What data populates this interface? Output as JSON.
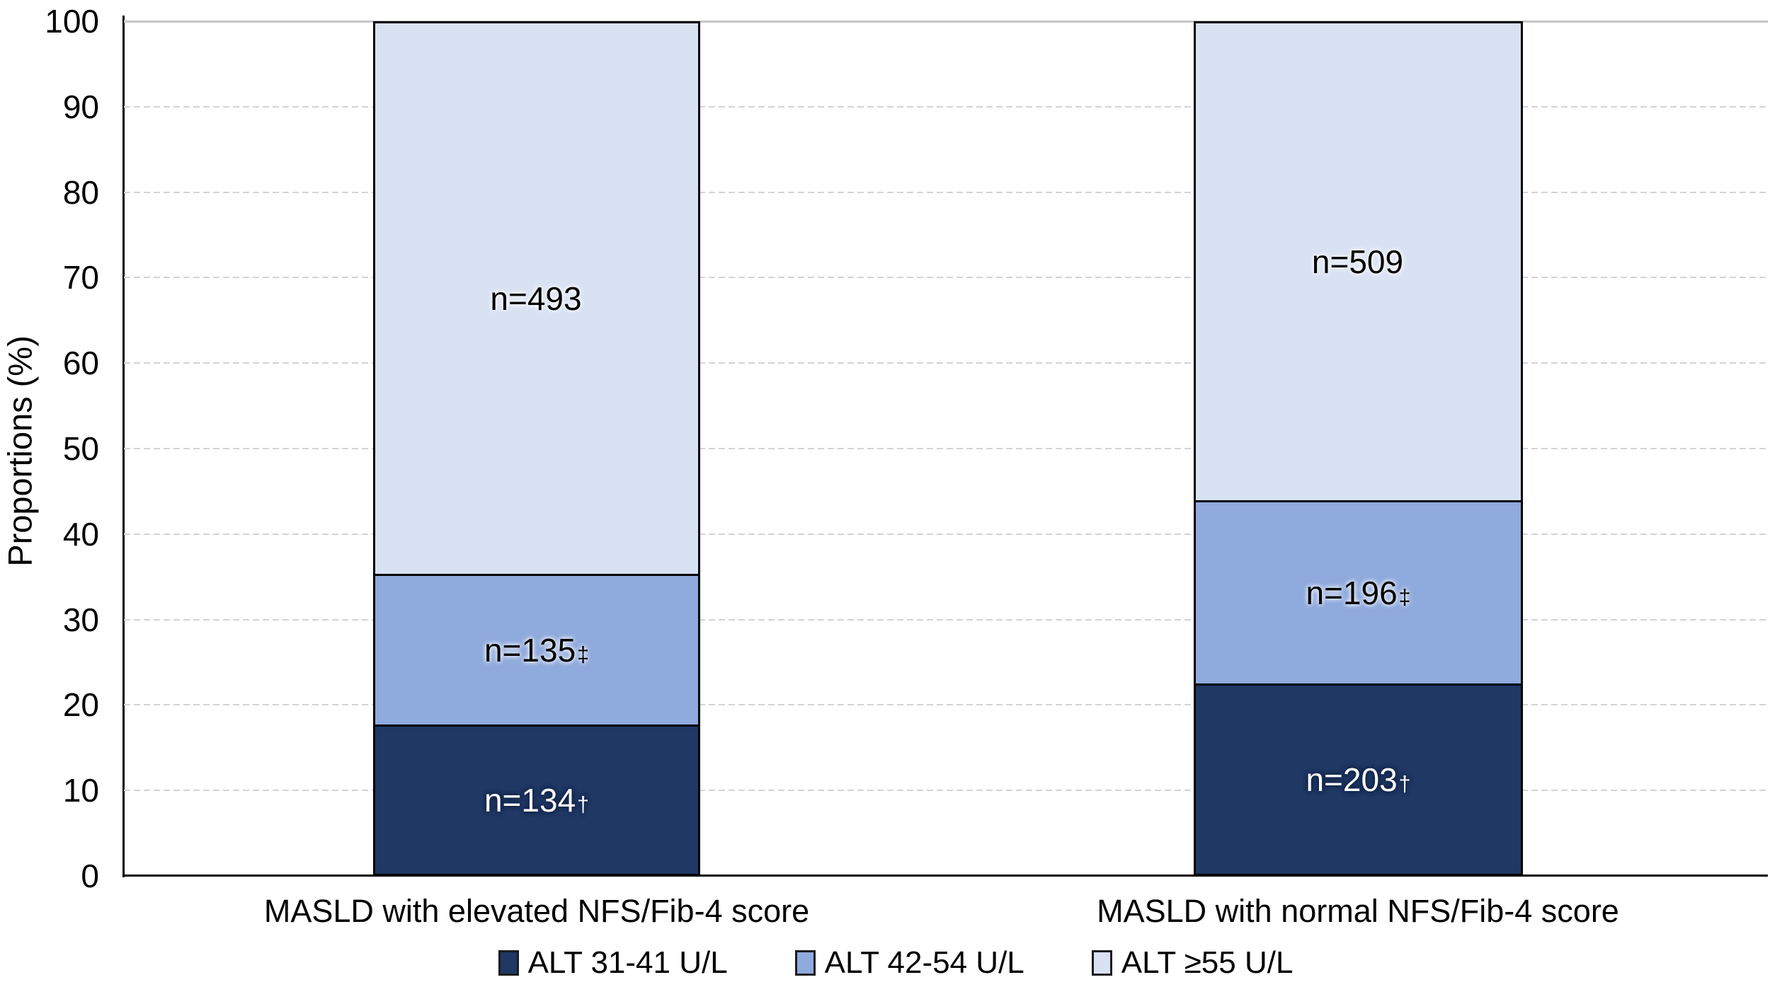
{
  "figure": {
    "background": "#ffffff",
    "y_axis_title": "Proportions (%)",
    "legend": [
      {
        "label": "ALT 31-41 U/L",
        "color": "#1F3864"
      },
      {
        "label": "ALT 42-54 U/L",
        "color": "#8FAADC"
      },
      {
        "label": "ALT ≥55 U/L",
        "color": "#D9E2F3"
      }
    ]
  },
  "chart_data": {
    "type": "bar",
    "subtype": "stacked-100-percent",
    "title": "",
    "xlabel": "",
    "ylabel": "Proportions (%)",
    "ylim": [
      0,
      100
    ],
    "yticks": [
      0,
      10,
      20,
      30,
      40,
      50,
      60,
      70,
      80,
      90,
      100
    ],
    "grid": "horizontal dashed gray every 10%, solid gray at 100%",
    "legend_position": "bottom",
    "categories": [
      "MASLD with elevated NFS/Fib-4 score",
      "MASLD with normal NFS/Fib-4 score"
    ],
    "series": [
      {
        "name": "ALT 31-41 U/L",
        "color": "#1F3864",
        "n_values": [
          134,
          203
        ],
        "pct_values": [
          17.58,
          22.36
        ]
      },
      {
        "name": "ALT 42-54 U/L",
        "color": "#8FAADC",
        "n_values": [
          135,
          196
        ],
        "pct_values": [
          17.72,
          21.59
        ]
      },
      {
        "name": "ALT ≥55 U/L",
        "color": "#D9E2F3",
        "n_values": [
          493,
          509
        ],
        "pct_values": [
          64.7,
          56.05
        ]
      }
    ],
    "bars": [
      {
        "category": "MASLD with elevated NFS/Fib-4 score",
        "segments": [
          {
            "series": "ALT ≥55 U/L",
            "fill": "#D9E2F3",
            "n": 493,
            "pct": 64.7,
            "label_base": "n=493",
            "label_sup": ""
          },
          {
            "series": "ALT 42-54 U/L",
            "fill": "#8FAADC",
            "n": 135,
            "pct": 17.72,
            "label_base": "n=135",
            "label_sup": "‡"
          },
          {
            "series": "ALT 31-41 U/L",
            "fill": "#1F3864",
            "n": 134,
            "pct": 17.58,
            "label_base": "n=134",
            "label_sup": "†"
          }
        ]
      },
      {
        "category": "MASLD with normal NFS/Fib-4 score",
        "segments": [
          {
            "series": "ALT ≥55 U/L",
            "fill": "#D9E2F3",
            "n": 509,
            "pct": 56.05,
            "label_base": "n=509",
            "label_sup": ""
          },
          {
            "series": "ALT 42-54 U/L",
            "fill": "#8FAADC",
            "n": 196,
            "pct": 21.59,
            "label_base": "n=196",
            "label_sup": "‡"
          },
          {
            "series": "ALT 31-41 U/L",
            "fill": "#1F3864",
            "n": 203,
            "pct": 22.36,
            "label_base": "n=203",
            "label_sup": "†"
          }
        ]
      }
    ]
  }
}
